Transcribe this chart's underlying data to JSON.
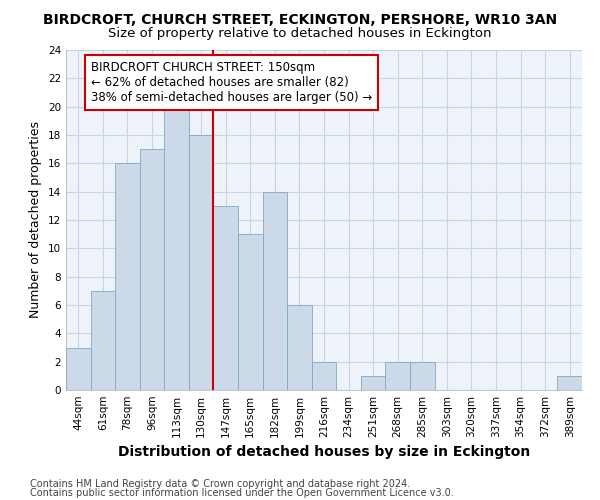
{
  "title": "BIRDCROFT, CHURCH STREET, ECKINGTON, PERSHORE, WR10 3AN",
  "subtitle": "Size of property relative to detached houses in Eckington",
  "xlabel": "Distribution of detached houses by size in Eckington",
  "ylabel": "Number of detached properties",
  "categories": [
    "44sqm",
    "61sqm",
    "78sqm",
    "96sqm",
    "113sqm",
    "130sqm",
    "147sqm",
    "165sqm",
    "182sqm",
    "199sqm",
    "216sqm",
    "234sqm",
    "251sqm",
    "268sqm",
    "285sqm",
    "303sqm",
    "320sqm",
    "337sqm",
    "354sqm",
    "372sqm",
    "389sqm"
  ],
  "values": [
    3,
    7,
    16,
    17,
    20,
    18,
    13,
    11,
    14,
    6,
    2,
    0,
    1,
    2,
    2,
    0,
    0,
    0,
    0,
    0,
    1
  ],
  "bar_color": "#ccd9e8",
  "bar_edge_color": "#7fa8c8",
  "vline_after_index": 6,
  "vline_color": "#cc0000",
  "annotation_text": "BIRDCROFT CHURCH STREET: 150sqm\n← 62% of detached houses are smaller (82)\n38% of semi-detached houses are larger (50) →",
  "annotation_box_edgecolor": "#cc0000",
  "annotation_fontsize": 8.5,
  "ylim": [
    0,
    24
  ],
  "yticks": [
    0,
    2,
    4,
    6,
    8,
    10,
    12,
    14,
    16,
    18,
    20,
    22,
    24
  ],
  "title_fontsize": 10,
  "subtitle_fontsize": 9.5,
  "xlabel_fontsize": 10,
  "ylabel_fontsize": 9,
  "tick_fontsize": 7.5,
  "footer_line1": "Contains HM Land Registry data © Crown copyright and database right 2024.",
  "footer_line2": "Contains public sector information licensed under the Open Government Licence v3.0.",
  "footer_fontsize": 7,
  "bg_color": "#eef3f9",
  "grid_color": "#c8d4e4"
}
